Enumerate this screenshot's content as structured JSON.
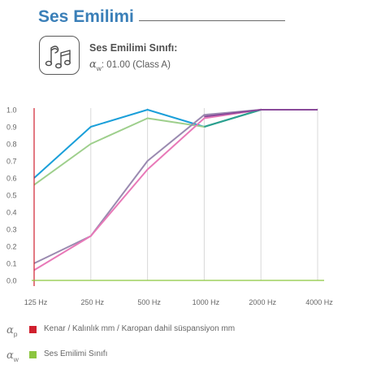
{
  "header": {
    "title": "Ses Emilimi"
  },
  "info": {
    "icon": "music-notes-icon",
    "title": "Ses Emilimi Sınıfı:",
    "alpha_symbol": "α",
    "alpha_sub": "w",
    "rating": ": 01.00 (Class A)"
  },
  "legend": [
    {
      "symbol": "α",
      "sub": "p",
      "color": "#d0202e",
      "text": "Kenar / Kalınlık mm / Karopan dahil süspansiyon mm"
    },
    {
      "symbol": "α",
      "sub": "w",
      "color": "#8cc63f",
      "text": "Ses Emilimi Sınıfı"
    }
  ],
  "chart_data": {
    "type": "line",
    "categories": [
      "125 Hz",
      "250 Hz",
      "500 Hz",
      "1000 Hz",
      "2000 Hz",
      "4000 Hz"
    ],
    "y_ticks": [
      "0.0",
      "0.1",
      "0.2",
      "0.3",
      "0.4",
      "0.5",
      "0.6",
      "0.7",
      "0.8",
      "0.9",
      "1.0"
    ],
    "ylim": [
      0,
      1.0
    ],
    "title": "",
    "xlabel": "",
    "ylabel": "",
    "grid": "vertical",
    "axis_colors": {
      "y_axis": "#d0202e",
      "x_axis": "#8cc63f",
      "grid": "#d8d8d8"
    },
    "series": [
      {
        "color": "#1a9fd9",
        "values": [
          0.6,
          0.9,
          1.0,
          0.9,
          1.0,
          1.0
        ]
      },
      {
        "color": "#9ecf8c",
        "values": [
          0.56,
          0.8,
          0.95,
          0.9,
          1.0,
          1.0
        ]
      },
      {
        "color": "#9a8ab0",
        "values": [
          0.1,
          0.26,
          0.7,
          0.97,
          1.0,
          1.0
        ]
      },
      {
        "color": "#e879b8",
        "values": [
          0.06,
          0.26,
          0.65,
          0.95,
          1.0,
          1.0
        ]
      },
      {
        "color": "#2aa090",
        "values": [
          null,
          null,
          null,
          0.9,
          1.0,
          1.0
        ]
      },
      {
        "color": "#8a4a9a",
        "values": [
          null,
          0.26,
          null,
          0.96,
          1.0,
          1.0
        ]
      }
    ]
  }
}
